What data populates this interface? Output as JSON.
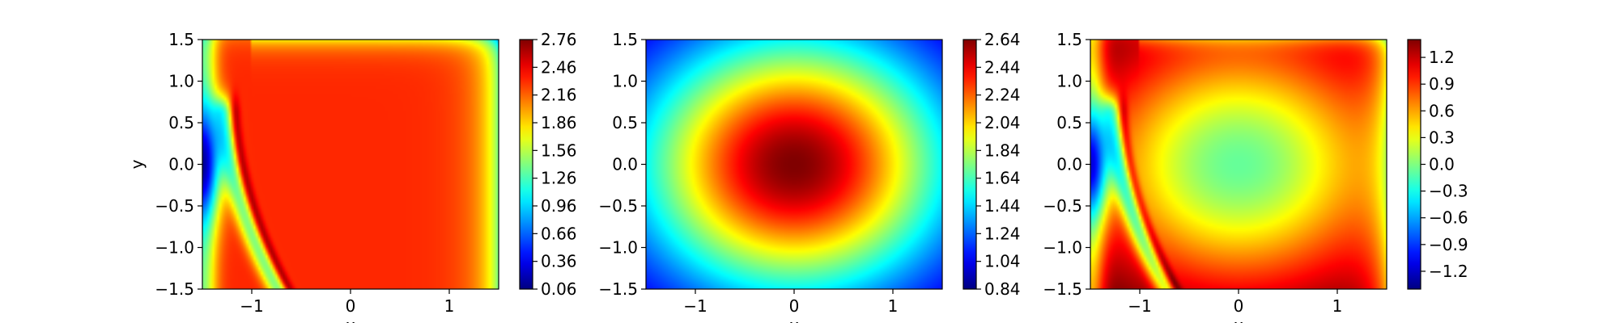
{
  "chart_data": [
    {
      "type": "heatmap",
      "title": "",
      "xlabel": "x",
      "ylabel": "y",
      "xlim": [
        -1.5,
        1.5
      ],
      "ylim": [
        -1.5,
        1.5
      ],
      "xticks": [
        -1,
        0,
        1
      ],
      "xtick_labels": [
        "−1",
        "0",
        "1"
      ],
      "yticks": [
        1.5,
        1.0,
        0.5,
        0.0,
        -0.5,
        -1.0,
        -1.5
      ],
      "ytick_labels": [
        "1.5",
        "1.0",
        "0.5",
        "0.0",
        "−0.5",
        "−1.0",
        "−1.5"
      ],
      "colormap": "jet",
      "colorbar": {
        "min": 0.06,
        "max": 2.76,
        "ticks": [
          2.76,
          2.46,
          2.16,
          1.86,
          1.56,
          1.26,
          0.96,
          0.66,
          0.36,
          0.06
        ],
        "tick_labels": [
          "2.76",
          "2.46",
          "2.16",
          "1.86",
          "1.56",
          "1.26",
          "0.96",
          "0.66",
          "0.36",
          "0.06"
        ]
      },
      "field_description": "near-uniform value about 2.3 in the interior; low value (~0.1) lobe at the left edge around y=0; narrow high-value (~2.76) ridge curving from (-1.2,0.5) to (-1.0,-1.5); values fall to ~1.3 along the right edge"
    },
    {
      "type": "heatmap",
      "title": "",
      "xlabel": "x",
      "ylabel": "",
      "xlim": [
        -1.5,
        1.5
      ],
      "ylim": [
        -1.5,
        1.5
      ],
      "xticks": [
        -1,
        0,
        1
      ],
      "xtick_labels": [
        "−1",
        "0",
        "1"
      ],
      "yticks": [
        1.5,
        1.0,
        0.5,
        0.0,
        -0.5,
        -1.0,
        -1.5
      ],
      "ytick_labels": [
        "1.5",
        "1.0",
        "0.5",
        "0.0",
        "−0.5",
        "−1.0",
        "−1.5"
      ],
      "colormap": "jet",
      "colorbar": {
        "min": 0.84,
        "max": 2.64,
        "ticks": [
          2.64,
          2.44,
          2.24,
          2.04,
          1.84,
          1.64,
          1.44,
          1.24,
          1.04,
          0.84
        ],
        "tick_labels": [
          "2.64",
          "2.44",
          "2.24",
          "2.04",
          "1.84",
          "1.64",
          "1.44",
          "1.24",
          "1.04",
          "0.84"
        ]
      },
      "field_description": "radially symmetric peak of ~2.64 at (0,0) decreasing outward to ~0.84 at the four corners"
    },
    {
      "type": "heatmap",
      "title": "",
      "xlabel": "x",
      "ylabel": "",
      "xlim": [
        -1.5,
        1.5
      ],
      "ylim": [
        -1.5,
        1.5
      ],
      "xticks": [
        -1,
        0,
        1
      ],
      "xtick_labels": [
        "−1",
        "0",
        "1"
      ],
      "yticks": [
        1.5,
        1.0,
        0.5,
        0.0,
        -0.5,
        -1.0,
        -1.5
      ],
      "ytick_labels": [
        "1.5",
        "1.0",
        "0.5",
        "0.0",
        "−0.5",
        "−1.0",
        "−1.5"
      ],
      "colormap": "jet",
      "colorbar": {
        "min": -1.4,
        "max": 1.4,
        "ticks": [
          1.2,
          0.9,
          0.6,
          0.3,
          0.0,
          -0.3,
          -0.6,
          -0.9,
          -1.2
        ],
        "tick_labels": [
          "1.2",
          "0.9",
          "0.6",
          "0.3",
          "0.0",
          "−0.3",
          "−0.6",
          "−0.9",
          "−1.2"
        ]
      },
      "field_description": "difference of the first two fields: about -0.2 at the centre rising to ~0.5 near the corners; strong negative lobe (~-1.4) at the left edge around y=0; narrow positive ridge (~1.2) curving from (-1.2,0.5) to (-1.0,-1.5)"
    }
  ]
}
